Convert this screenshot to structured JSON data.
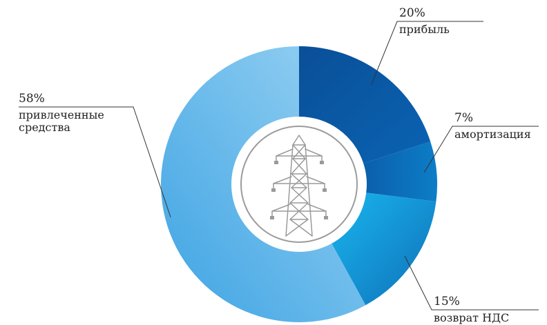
{
  "chart_data": {
    "type": "pie",
    "style": "donut",
    "title": "",
    "legend": "none",
    "slices": [
      {
        "percent_label": "20%",
        "value": 20,
        "label_lines": [
          "прибыль"
        ],
        "color": "#0a59a6"
      },
      {
        "percent_label": "7%",
        "value": 7,
        "label_lines": [
          "амортизация"
        ],
        "color": "#0c6fbd"
      },
      {
        "percent_label": "15%",
        "value": 15,
        "label_lines": [
          "возврат НДС"
        ],
        "color": "#17aee8"
      },
      {
        "percent_label": "58%",
        "value": 58,
        "label_lines": [
          "привлеченные",
          "средства"
        ],
        "color": "#6cc1ee"
      }
    ],
    "center_icon": "power-transmission-tower-icon"
  }
}
